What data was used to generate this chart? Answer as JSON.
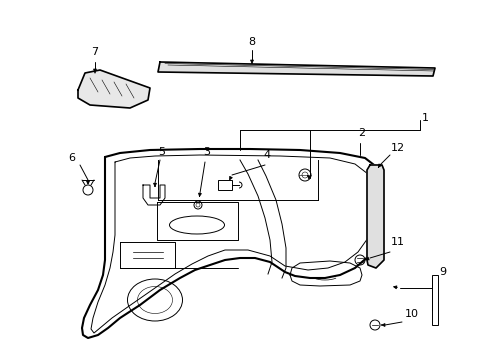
{
  "bg_color": "#ffffff",
  "fig_width": 4.89,
  "fig_height": 3.6,
  "dpi": 100,
  "lc": "#000000",
  "lw": 1.2,
  "tlw": 0.7
}
